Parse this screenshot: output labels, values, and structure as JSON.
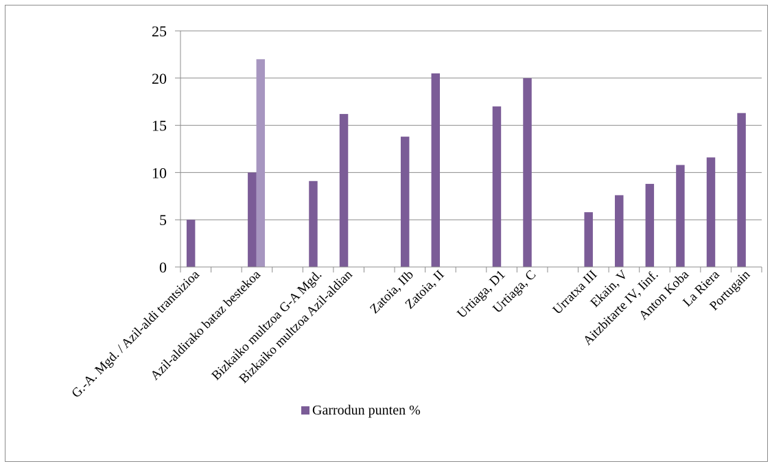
{
  "chart_data": {
    "type": "bar",
    "categories": [
      "G.-A. Mgd. / Azil-aldi trantsizioa",
      "",
      "Azil-aldirako bataz bestekoa",
      "",
      "Bizkaiko multzoa G-A Mgd.",
      "Bizkaiko multzoa Azil-aldian",
      "",
      "Zatoia, IIb",
      "Zatoia, II",
      "",
      "Urtiaga, D1",
      "Urtiaga, C",
      "",
      "Urratxa III",
      "Ekain, V",
      "Aitzbitarte IV, Iinf.",
      "Anton Koba",
      "La Riera",
      "Portugain"
    ],
    "series": [
      {
        "name": "Garrodun punten %",
        "color": "#7b5c97",
        "values": [
          5,
          null,
          10,
          null,
          9.1,
          16.2,
          null,
          13.8,
          20.5,
          null,
          17,
          20,
          null,
          5.8,
          7.6,
          8.8,
          10.8,
          11.6,
          16.3
        ]
      },
      {
        "name": "",
        "color": "#a796c0",
        "values": [
          null,
          null,
          22,
          null,
          null,
          null,
          null,
          null,
          null,
          null,
          null,
          null,
          null,
          null,
          null,
          null,
          null,
          null,
          null
        ]
      }
    ],
    "yticks": [
      "0",
      "5",
      "10",
      "15",
      "20",
      "25"
    ],
    "ylim": [
      0,
      25
    ],
    "grid": true,
    "legend": "bottom",
    "legend_label": "Garrodun punten %"
  }
}
